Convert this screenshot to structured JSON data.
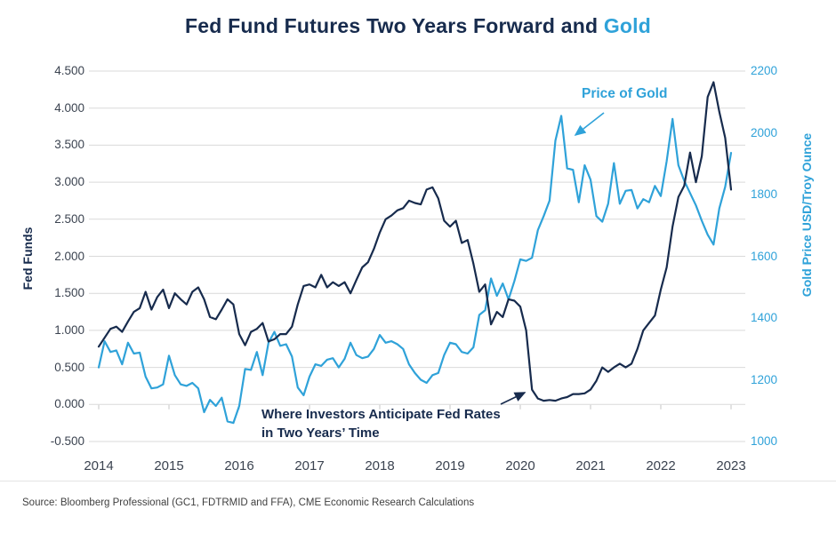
{
  "title": {
    "dark": "Fed Fund Futures Two Years Forward and ",
    "accent": "Gold"
  },
  "source": "Source: Bloomberg Professional (GC1, FDTRMID and FFA), CME Economic Research Calculations",
  "colors": {
    "navy": "#172b4d",
    "accent": "#2fa2d9",
    "gridline": "#d9d9d9",
    "axis_tick": "#c4c4c4",
    "tick_text": "#3b4350"
  },
  "chart_data": {
    "type": "line",
    "title": "Fed Fund Futures Two Years Forward and Gold",
    "x_axis": {
      "start_year": 2014,
      "step_months": 1,
      "ticks": [
        2014,
        2015,
        2016,
        2017,
        2018,
        2019,
        2020,
        2021,
        2022,
        2023
      ]
    },
    "left_axis": {
      "label": "Fed Funds",
      "min": -0.5,
      "max": 4.5,
      "ticks": [
        "4.500",
        "4.000",
        "3.500",
        "3.000",
        "2.500",
        "2.000",
        "1.500",
        "1.000",
        "0.500",
        "0.000",
        "-0.500"
      ]
    },
    "right_axis": {
      "label": "Gold Price USD/Troy Ounce",
      "min": 1000,
      "max": 2200,
      "ticks": [
        "2200",
        "2000",
        "1800",
        "1600",
        "1400",
        "1200",
        "1000"
      ]
    },
    "grid": "horizontal",
    "legend": "none",
    "series": [
      {
        "name": "Price of Gold",
        "axis": "right",
        "color": "#2fa2d9",
        "values": [
          1240,
          1325,
          1290,
          1295,
          1250,
          1320,
          1285,
          1288,
          1210,
          1172,
          1175,
          1185,
          1278,
          1215,
          1185,
          1180,
          1190,
          1172,
          1095,
          1135,
          1115,
          1142,
          1065,
          1060,
          1115,
          1235,
          1232,
          1290,
          1215,
          1320,
          1355,
          1310,
          1315,
          1275,
          1175,
          1150,
          1210,
          1250,
          1245,
          1265,
          1270,
          1240,
          1268,
          1320,
          1280,
          1270,
          1275,
          1300,
          1345,
          1320,
          1325,
          1315,
          1300,
          1250,
          1222,
          1200,
          1190,
          1215,
          1222,
          1280,
          1320,
          1315,
          1290,
          1285,
          1305,
          1410,
          1425,
          1528,
          1472,
          1512,
          1460,
          1520,
          1590,
          1585,
          1595,
          1685,
          1730,
          1780,
          1975,
          2055,
          1885,
          1880,
          1775,
          1895,
          1848,
          1730,
          1712,
          1770,
          1902,
          1770,
          1812,
          1815,
          1755,
          1785,
          1775,
          1828,
          1795,
          1908,
          2045,
          1895,
          1845,
          1805,
          1765,
          1715,
          1670,
          1638,
          1755,
          1825,
          1935
        ]
      },
      {
        "name": "Where Investors Anticipate Fed Rates in Two Years' Time",
        "axis": "left",
        "color": "#172b4d",
        "values": [
          0.78,
          0.9,
          1.02,
          1.05,
          0.98,
          1.12,
          1.25,
          1.3,
          1.52,
          1.28,
          1.45,
          1.55,
          1.3,
          1.5,
          1.42,
          1.35,
          1.52,
          1.58,
          1.42,
          1.18,
          1.15,
          1.28,
          1.42,
          1.35,
          0.95,
          0.8,
          0.98,
          1.02,
          1.1,
          0.85,
          0.88,
          0.95,
          0.95,
          1.05,
          1.35,
          1.6,
          1.62,
          1.58,
          1.75,
          1.58,
          1.65,
          1.6,
          1.65,
          1.5,
          1.68,
          1.85,
          1.92,
          2.1,
          2.32,
          2.5,
          2.55,
          2.62,
          2.65,
          2.75,
          2.72,
          2.7,
          2.9,
          2.93,
          2.78,
          2.48,
          2.4,
          2.48,
          2.18,
          2.22,
          1.9,
          1.52,
          1.62,
          1.08,
          1.25,
          1.18,
          1.42,
          1.4,
          1.32,
          1.0,
          0.2,
          0.08,
          0.05,
          0.06,
          0.05,
          0.08,
          0.1,
          0.14,
          0.14,
          0.15,
          0.2,
          0.32,
          0.5,
          0.44,
          0.5,
          0.55,
          0.5,
          0.55,
          0.75,
          1.0,
          1.1,
          1.2,
          1.55,
          1.85,
          2.4,
          2.8,
          2.95,
          3.4,
          3.0,
          3.35,
          4.15,
          4.35,
          3.95,
          3.6,
          2.9
        ]
      }
    ],
    "annotations": {
      "gold": {
        "text": "Price of Gold"
      },
      "fed": {
        "line1": "Where Investors Anticipate Fed Rates",
        "line2": "in Two Years’ Time"
      }
    }
  }
}
